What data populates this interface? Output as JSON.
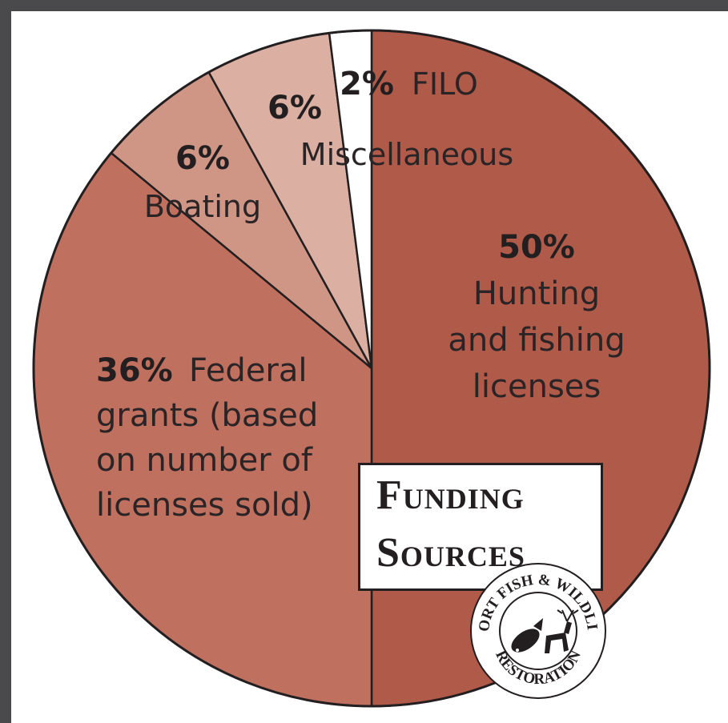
{
  "chart_data": {
    "type": "pie",
    "title": "Funding Sources",
    "title_lines": [
      "Funding",
      "Sources"
    ],
    "slices": [
      {
        "pct_label": "50%",
        "name_lines": [
          "Hunting",
          "and fishing",
          "licenses"
        ],
        "value": 50,
        "color": "#b05a49"
      },
      {
        "pct_label": "36%",
        "name_lines": [
          "Federal",
          "grants (based",
          "on number of",
          "licenses sold)"
        ],
        "value": 36,
        "color": "#bf705f"
      },
      {
        "pct_label": "6%",
        "name_lines": [
          "Boating"
        ],
        "value": 6,
        "color": "#cf9585"
      },
      {
        "pct_label": "6%",
        "name_lines": [
          "Miscellaneous"
        ],
        "value": 6,
        "color": "#dbb0a3"
      },
      {
        "pct_label": "2%",
        "name_lines": [
          "FILO"
        ],
        "value": 2,
        "color": "#ffffff"
      }
    ]
  },
  "logo": {
    "top_text": "SPORT FISH & WILDLIFE",
    "bottom_text": "RESTORATION"
  },
  "colors": {
    "outline": "#231f20",
    "background": "#4a4a4d"
  }
}
